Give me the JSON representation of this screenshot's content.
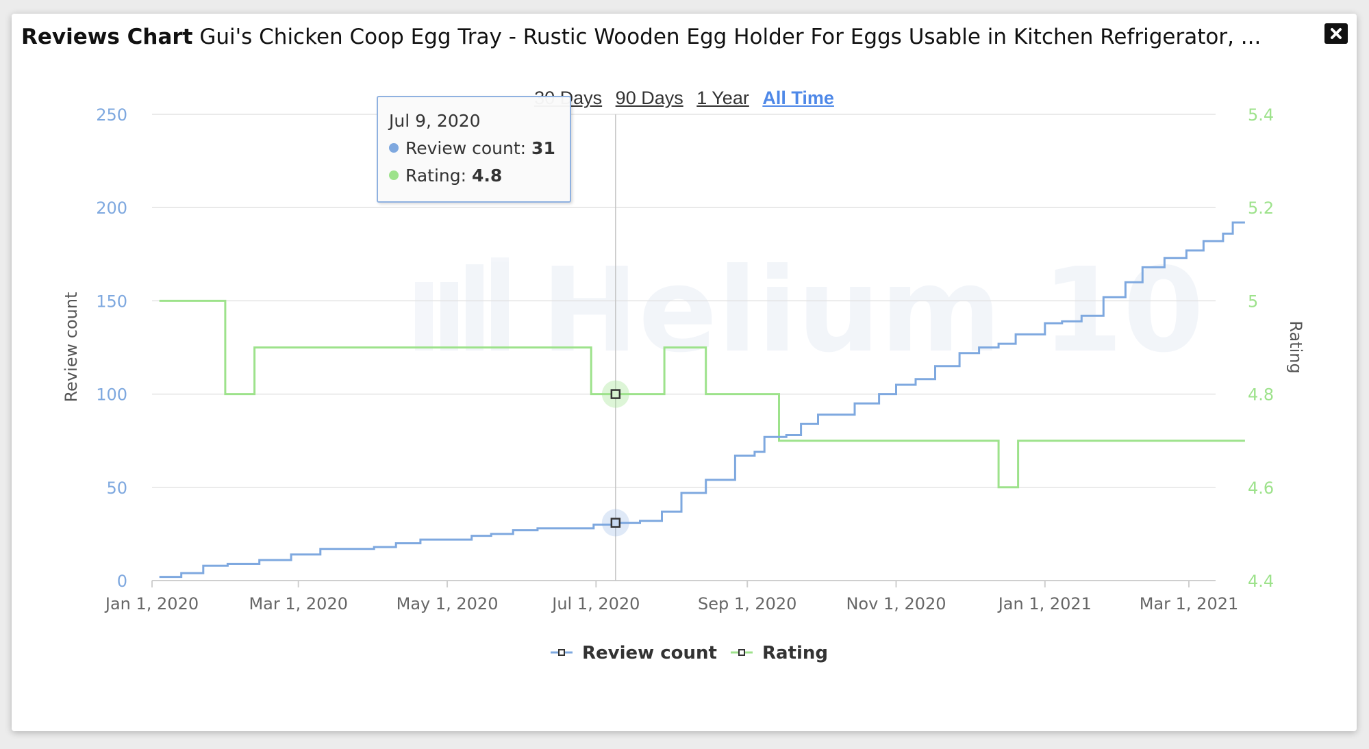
{
  "modal": {
    "title_bold": "Reviews Chart",
    "title_rest": " Gui's Chicken Coop Egg Tray - Rustic Wooden Egg Holder For Eggs Usable in Kitchen Refrigerator, ...",
    "close_icon": "close-icon"
  },
  "range_tabs": [
    {
      "label": "30 Days",
      "active": false
    },
    {
      "label": "90 Days",
      "active": false
    },
    {
      "label": "1 Year",
      "active": false
    },
    {
      "label": "All Time",
      "active": true
    }
  ],
  "watermark": "Helium 10",
  "tooltip": {
    "date": "Jul 9, 2020",
    "review_label": "Review count: ",
    "review_value": "31",
    "rating_label": "Rating: ",
    "rating_value": "4.8"
  },
  "colors": {
    "review": "#7ea8df",
    "rating": "#9de28b",
    "left_axis": "#7ea8df",
    "right_axis": "#9de28b",
    "grid": "#e3e3e3",
    "active_tab": "#4e88e8"
  },
  "chart_data": {
    "type": "line",
    "step": true,
    "x_axis": {
      "type": "datetime",
      "ticks": [
        "2020-01-01",
        "2020-03-01",
        "2020-05-01",
        "2020-07-01",
        "2020-09-01",
        "2020-11-01",
        "2021-01-01",
        "2021-03-01"
      ],
      "tick_labels": [
        "Jan 1, 2020",
        "Mar 1, 2020",
        "May 1, 2020",
        "Jul 1, 2020",
        "Sep 1, 2020",
        "Nov 1, 2020",
        "Jan 1, 2021",
        "Mar 1, 2021"
      ],
      "range": [
        "2020-01-01",
        "2021-03-12"
      ]
    },
    "y_left": {
      "label": "Review count",
      "range": [
        0,
        250
      ],
      "ticks": [
        0,
        50,
        100,
        150,
        200,
        250
      ]
    },
    "y_right": {
      "label": "Rating",
      "range": [
        4.4,
        5.4
      ],
      "ticks": [
        4.4,
        4.6,
        4.8,
        5,
        5.2,
        5.4
      ],
      "tick_labels": [
        "4.4",
        "4.6",
        "4.8",
        "5",
        "5.2",
        "5.4"
      ]
    },
    "grid": true,
    "legend": "bottom-center",
    "crosshair_date": "2020-07-09",
    "series": [
      {
        "name": "Review count",
        "axis": "left",
        "points": [
          [
            "2020-01-04",
            2
          ],
          [
            "2020-01-13",
            4
          ],
          [
            "2020-01-22",
            8
          ],
          [
            "2020-02-01",
            9
          ],
          [
            "2020-02-14",
            11
          ],
          [
            "2020-02-27",
            14
          ],
          [
            "2020-03-10",
            17
          ],
          [
            "2020-04-01",
            18
          ],
          [
            "2020-04-10",
            20
          ],
          [
            "2020-04-20",
            22
          ],
          [
            "2020-05-09",
            22
          ],
          [
            "2020-05-11",
            24
          ],
          [
            "2020-05-19",
            25
          ],
          [
            "2020-05-28",
            27
          ],
          [
            "2020-06-07",
            28
          ],
          [
            "2020-06-29",
            28
          ],
          [
            "2020-06-30",
            30
          ],
          [
            "2020-07-09",
            31
          ],
          [
            "2020-07-19",
            32
          ],
          [
            "2020-07-28",
            37
          ],
          [
            "2020-08-05",
            47
          ],
          [
            "2020-08-15",
            54
          ],
          [
            "2020-08-27",
            67
          ],
          [
            "2020-09-04",
            69
          ],
          [
            "2020-09-08",
            77
          ],
          [
            "2020-09-17",
            78
          ],
          [
            "2020-09-23",
            84
          ],
          [
            "2020-09-30",
            89
          ],
          [
            "2020-10-15",
            95
          ],
          [
            "2020-10-25",
            100
          ],
          [
            "2020-11-01",
            105
          ],
          [
            "2020-11-09",
            108
          ],
          [
            "2020-11-17",
            115
          ],
          [
            "2020-11-27",
            122
          ],
          [
            "2020-12-05",
            125
          ],
          [
            "2020-12-13",
            127
          ],
          [
            "2020-12-20",
            132
          ],
          [
            "2021-01-01",
            138
          ],
          [
            "2021-01-08",
            139
          ],
          [
            "2021-01-16",
            142
          ],
          [
            "2021-01-25",
            152
          ],
          [
            "2021-02-03",
            160
          ],
          [
            "2021-02-10",
            168
          ],
          [
            "2021-02-19",
            173
          ],
          [
            "2021-02-28",
            177
          ],
          [
            "2021-03-07",
            182
          ],
          [
            "2021-03-15",
            186
          ],
          [
            "2021-03-19",
            192
          ],
          [
            "2021-03-24",
            192
          ]
        ]
      },
      {
        "name": "Rating",
        "axis": "right",
        "points": [
          [
            "2020-01-04",
            5.0
          ],
          [
            "2020-01-31",
            4.8
          ],
          [
            "2020-02-12",
            4.9
          ],
          [
            "2020-06-29",
            4.8
          ],
          [
            "2020-07-29",
            4.9
          ],
          [
            "2020-08-15",
            4.8
          ],
          [
            "2020-09-14",
            4.7
          ],
          [
            "2020-12-13",
            4.6
          ],
          [
            "2020-12-21",
            4.7
          ],
          [
            "2021-03-24",
            4.7
          ]
        ]
      }
    ]
  }
}
